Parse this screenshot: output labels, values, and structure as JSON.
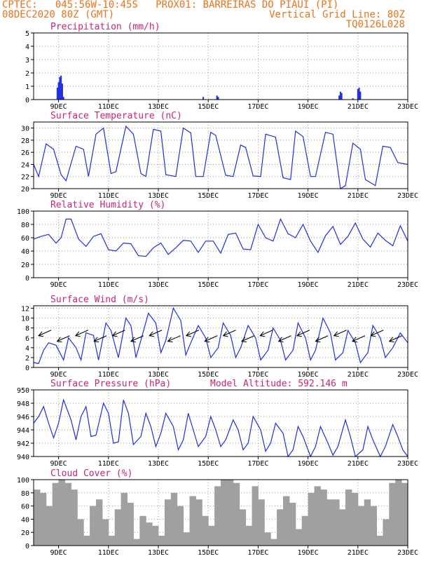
{
  "header": {
    "line1_left": "CPTEC:   045:56W-10:45S   PROX01: BARREIRAS DO PIAUI (PI)",
    "line2_left": "08DEC2020 80Z (GMT)",
    "line2_right": "Vertical Grid Line: 80Z",
    "line3_right": "TQ0126L028"
  },
  "x_ticks": [
    "9DEC",
    "11DEC",
    "13DEC",
    "15DEC",
    "17DEC",
    "19DEC",
    "21DEC",
    "23DEC"
  ],
  "chart_data": [
    {
      "type": "bar",
      "title": "Precipitation (mm/h)",
      "ylim": [
        0,
        5
      ],
      "yticks": [
        0,
        1,
        2,
        3,
        4,
        5
      ],
      "grid": true,
      "color": "#1f2fe0",
      "x": [
        0.95,
        1.0,
        1.05,
        1.1,
        1.15,
        1.2,
        6.8,
        7.35,
        7.4,
        12.25,
        12.3,
        12.35,
        12.8,
        13.0,
        13.05,
        13.1
      ],
      "values": [
        0.9,
        1.3,
        1.7,
        1.8,
        1.2,
        0.2,
        0.2,
        0.3,
        0.2,
        0.3,
        0.6,
        0.5,
        0.1,
        0.8,
        0.9,
        0.6
      ]
    },
    {
      "type": "line",
      "title": "Surface Temperature (nC)",
      "ylim": [
        20,
        31
      ],
      "yticks": [
        20,
        22,
        24,
        26,
        28,
        30
      ],
      "grid": true,
      "color": "#1f2fe0",
      "x": [
        0,
        0.2,
        0.5,
        0.8,
        1.1,
        1.3,
        1.7,
        2.0,
        2.2,
        2.5,
        2.8,
        3.1,
        3.3,
        3.7,
        4.0,
        4.3,
        4.5,
        4.8,
        5.1,
        5.3,
        5.7,
        6.0,
        6.3,
        6.5,
        6.8,
        7.1,
        7.3,
        7.7,
        8.0,
        8.3,
        8.5,
        8.8,
        9.1,
        9.3,
        9.7,
        10.0,
        10.3,
        10.5,
        10.8,
        11.1,
        11.3,
        11.7,
        12.0,
        12.3,
        12.5,
        12.8,
        13.1,
        13.3,
        13.7,
        14.0,
        14.3,
        14.6,
        15.0
      ],
      "values": [
        24,
        22,
        27.4,
        26.5,
        22.3,
        21.3,
        27,
        26.5,
        22,
        29,
        30,
        22.5,
        22.8,
        30.3,
        29,
        22.5,
        22,
        29.8,
        29.5,
        22.3,
        22,
        30,
        29.2,
        22,
        22,
        29.3,
        28.8,
        22.2,
        22,
        27.2,
        26.8,
        22.1,
        22,
        29,
        28.5,
        21.8,
        21.5,
        29.5,
        28.6,
        22,
        22,
        29.3,
        29,
        20,
        20.5,
        27.5,
        26.5,
        21.5,
        20.5,
        27,
        26.8,
        24.3,
        24
      ]
    },
    {
      "type": "line",
      "title": "Relative Humidity (%)",
      "ylim": [
        0,
        100
      ],
      "yticks": [
        0,
        20,
        40,
        60,
        80,
        100
      ],
      "grid": true,
      "color": "#1f2fe0",
      "x": [
        0,
        0.3,
        0.6,
        0.9,
        1.1,
        1.3,
        1.5,
        1.8,
        2.1,
        2.4,
        2.7,
        3.0,
        3.3,
        3.6,
        3.9,
        4.2,
        4.5,
        4.8,
        5.1,
        5.4,
        5.7,
        6.0,
        6.3,
        6.6,
        6.9,
        7.2,
        7.5,
        7.8,
        8.1,
        8.4,
        8.7,
        9.0,
        9.3,
        9.6,
        9.9,
        10.2,
        10.5,
        10.8,
        11.1,
        11.4,
        11.7,
        12.0,
        12.3,
        12.6,
        12.9,
        13.2,
        13.5,
        13.8,
        14.1,
        14.4,
        14.7,
        15.0
      ],
      "values": [
        58,
        62,
        65,
        52,
        60,
        88,
        88,
        58,
        47,
        62,
        66,
        42,
        40,
        52,
        51,
        33,
        32,
        45,
        52,
        35,
        45,
        56,
        55,
        38,
        55,
        55,
        37,
        65,
        67,
        43,
        42,
        80,
        60,
        55,
        88,
        66,
        60,
        80,
        55,
        38,
        63,
        77,
        50,
        62,
        82,
        58,
        46,
        67,
        56,
        48,
        78,
        55
      ]
    },
    {
      "type": "line",
      "title": "Surface Wind (m/s)",
      "ylim": [
        0,
        12.5
      ],
      "yticks": [
        0,
        2,
        4,
        6,
        8,
        10,
        12
      ],
      "grid": true,
      "color": "#1f2fe0",
      "x": [
        0,
        0.2,
        0.4,
        0.6,
        0.9,
        1.2,
        1.4,
        1.7,
        1.9,
        2.1,
        2.4,
        2.6,
        2.9,
        3.1,
        3.4,
        3.7,
        3.9,
        4.1,
        4.3,
        4.6,
        4.9,
        5.1,
        5.3,
        5.6,
        5.9,
        6.1,
        6.3,
        6.6,
        6.9,
        7.1,
        7.4,
        7.6,
        7.9,
        8.1,
        8.3,
        8.6,
        8.9,
        9.1,
        9.4,
        9.6,
        9.9,
        10.1,
        10.4,
        10.6,
        10.9,
        11.1,
        11.3,
        11.6,
        11.9,
        12.1,
        12.4,
        12.6,
        12.9,
        13.1,
        13.4,
        13.6,
        13.9,
        14.1,
        14.4,
        14.7,
        15.0
      ],
      "values": [
        1,
        0.8,
        3.5,
        5,
        4.5,
        1.5,
        6,
        4,
        1.5,
        7,
        6.5,
        1.5,
        9,
        7.5,
        2,
        10,
        8.5,
        2,
        5.5,
        11,
        9,
        3,
        5.5,
        12,
        9.5,
        2.5,
        5,
        8.5,
        6,
        2,
        4,
        9,
        6.5,
        2,
        4,
        8.5,
        6,
        1.5,
        3.5,
        8,
        5.5,
        1.5,
        3.5,
        9,
        6,
        1.5,
        3.5,
        10,
        7,
        1.5,
        3,
        7.5,
        5,
        1,
        3,
        8.5,
        6,
        2,
        4,
        7,
        5
      ]
    },
    {
      "type": "line",
      "title": "Surface Pressure (hPa)",
      "subtitle": "Model Altitude: 592.146 m",
      "ylim": [
        940,
        950
      ],
      "yticks": [
        940,
        942,
        944,
        946,
        948,
        950
      ],
      "grid": true,
      "color": "#1f2fe0",
      "x": [
        0,
        0.2,
        0.4,
        0.6,
        0.8,
        1.0,
        1.2,
        1.5,
        1.7,
        1.9,
        2.1,
        2.3,
        2.5,
        2.8,
        3.0,
        3.2,
        3.4,
        3.6,
        3.8,
        4.0,
        4.3,
        4.5,
        4.7,
        4.9,
        5.1,
        5.3,
        5.6,
        5.8,
        6.0,
        6.2,
        6.4,
        6.6,
        6.9,
        7.1,
        7.3,
        7.5,
        7.7,
        8.0,
        8.2,
        8.4,
        8.6,
        8.8,
        9.1,
        9.3,
        9.5,
        9.7,
        10.0,
        10.2,
        10.4,
        10.6,
        10.8,
        11.1,
        11.3,
        11.5,
        11.8,
        12.0,
        12.2,
        12.5,
        12.7,
        12.9,
        13.2,
        13.4,
        13.6,
        13.9,
        14.1,
        14.4,
        14.6,
        14.8,
        15.0
      ],
      "values": [
        945,
        946,
        947.5,
        945,
        942.8,
        945,
        948.5,
        945.5,
        942.5,
        946,
        947.5,
        943,
        943.2,
        948,
        946.5,
        942,
        942.2,
        948.5,
        946.5,
        941.8,
        943,
        946.5,
        944.5,
        941.5,
        943.5,
        946.5,
        944.5,
        941,
        942.5,
        946.5,
        944,
        941.5,
        943,
        946,
        944,
        941.5,
        942.5,
        945.5,
        944,
        941,
        942,
        946,
        944,
        940.8,
        942,
        945,
        943.5,
        940,
        941,
        944.5,
        943,
        940,
        941.5,
        944.5,
        942,
        940.2,
        941.5,
        945.5,
        943,
        940,
        941,
        944.5,
        942.5,
        940,
        941.5,
        944.8,
        943,
        941,
        940
      ]
    },
    {
      "type": "bar",
      "title": "Cloud Cover (%)",
      "ylim": [
        0,
        100
      ],
      "yticks": [
        0,
        20,
        40,
        60,
        80,
        100
      ],
      "grid": true,
      "color": "#a0a0a0",
      "x": [
        0,
        0.25,
        0.5,
        0.75,
        1.0,
        1.25,
        1.5,
        1.75,
        2.0,
        2.25,
        2.5,
        2.75,
        3.0,
        3.25,
        3.5,
        3.75,
        4.0,
        4.25,
        4.5,
        4.75,
        5.0,
        5.25,
        5.5,
        5.75,
        6.0,
        6.25,
        6.5,
        6.75,
        7.0,
        7.25,
        7.5,
        7.75,
        8.0,
        8.25,
        8.5,
        8.75,
        9.0,
        9.25,
        9.5,
        9.75,
        10.0,
        10.25,
        10.5,
        10.75,
        11.0,
        11.25,
        11.5,
        11.75,
        12.0,
        12.25,
        12.5,
        12.75,
        13.0,
        13.25,
        13.5,
        13.75,
        14.0,
        14.25,
        14.5,
        14.75
      ],
      "values": [
        85,
        80,
        60,
        95,
        100,
        95,
        85,
        40,
        15,
        60,
        70,
        40,
        15,
        55,
        80,
        65,
        10,
        45,
        35,
        30,
        15,
        70,
        80,
        60,
        20,
        75,
        70,
        45,
        30,
        90,
        100,
        100,
        95,
        55,
        30,
        90,
        70,
        20,
        10,
        55,
        75,
        65,
        25,
        45,
        80,
        90,
        85,
        70,
        70,
        55,
        85,
        80,
        60,
        70,
        60,
        15,
        40,
        95,
        100,
        95
      ]
    }
  ]
}
